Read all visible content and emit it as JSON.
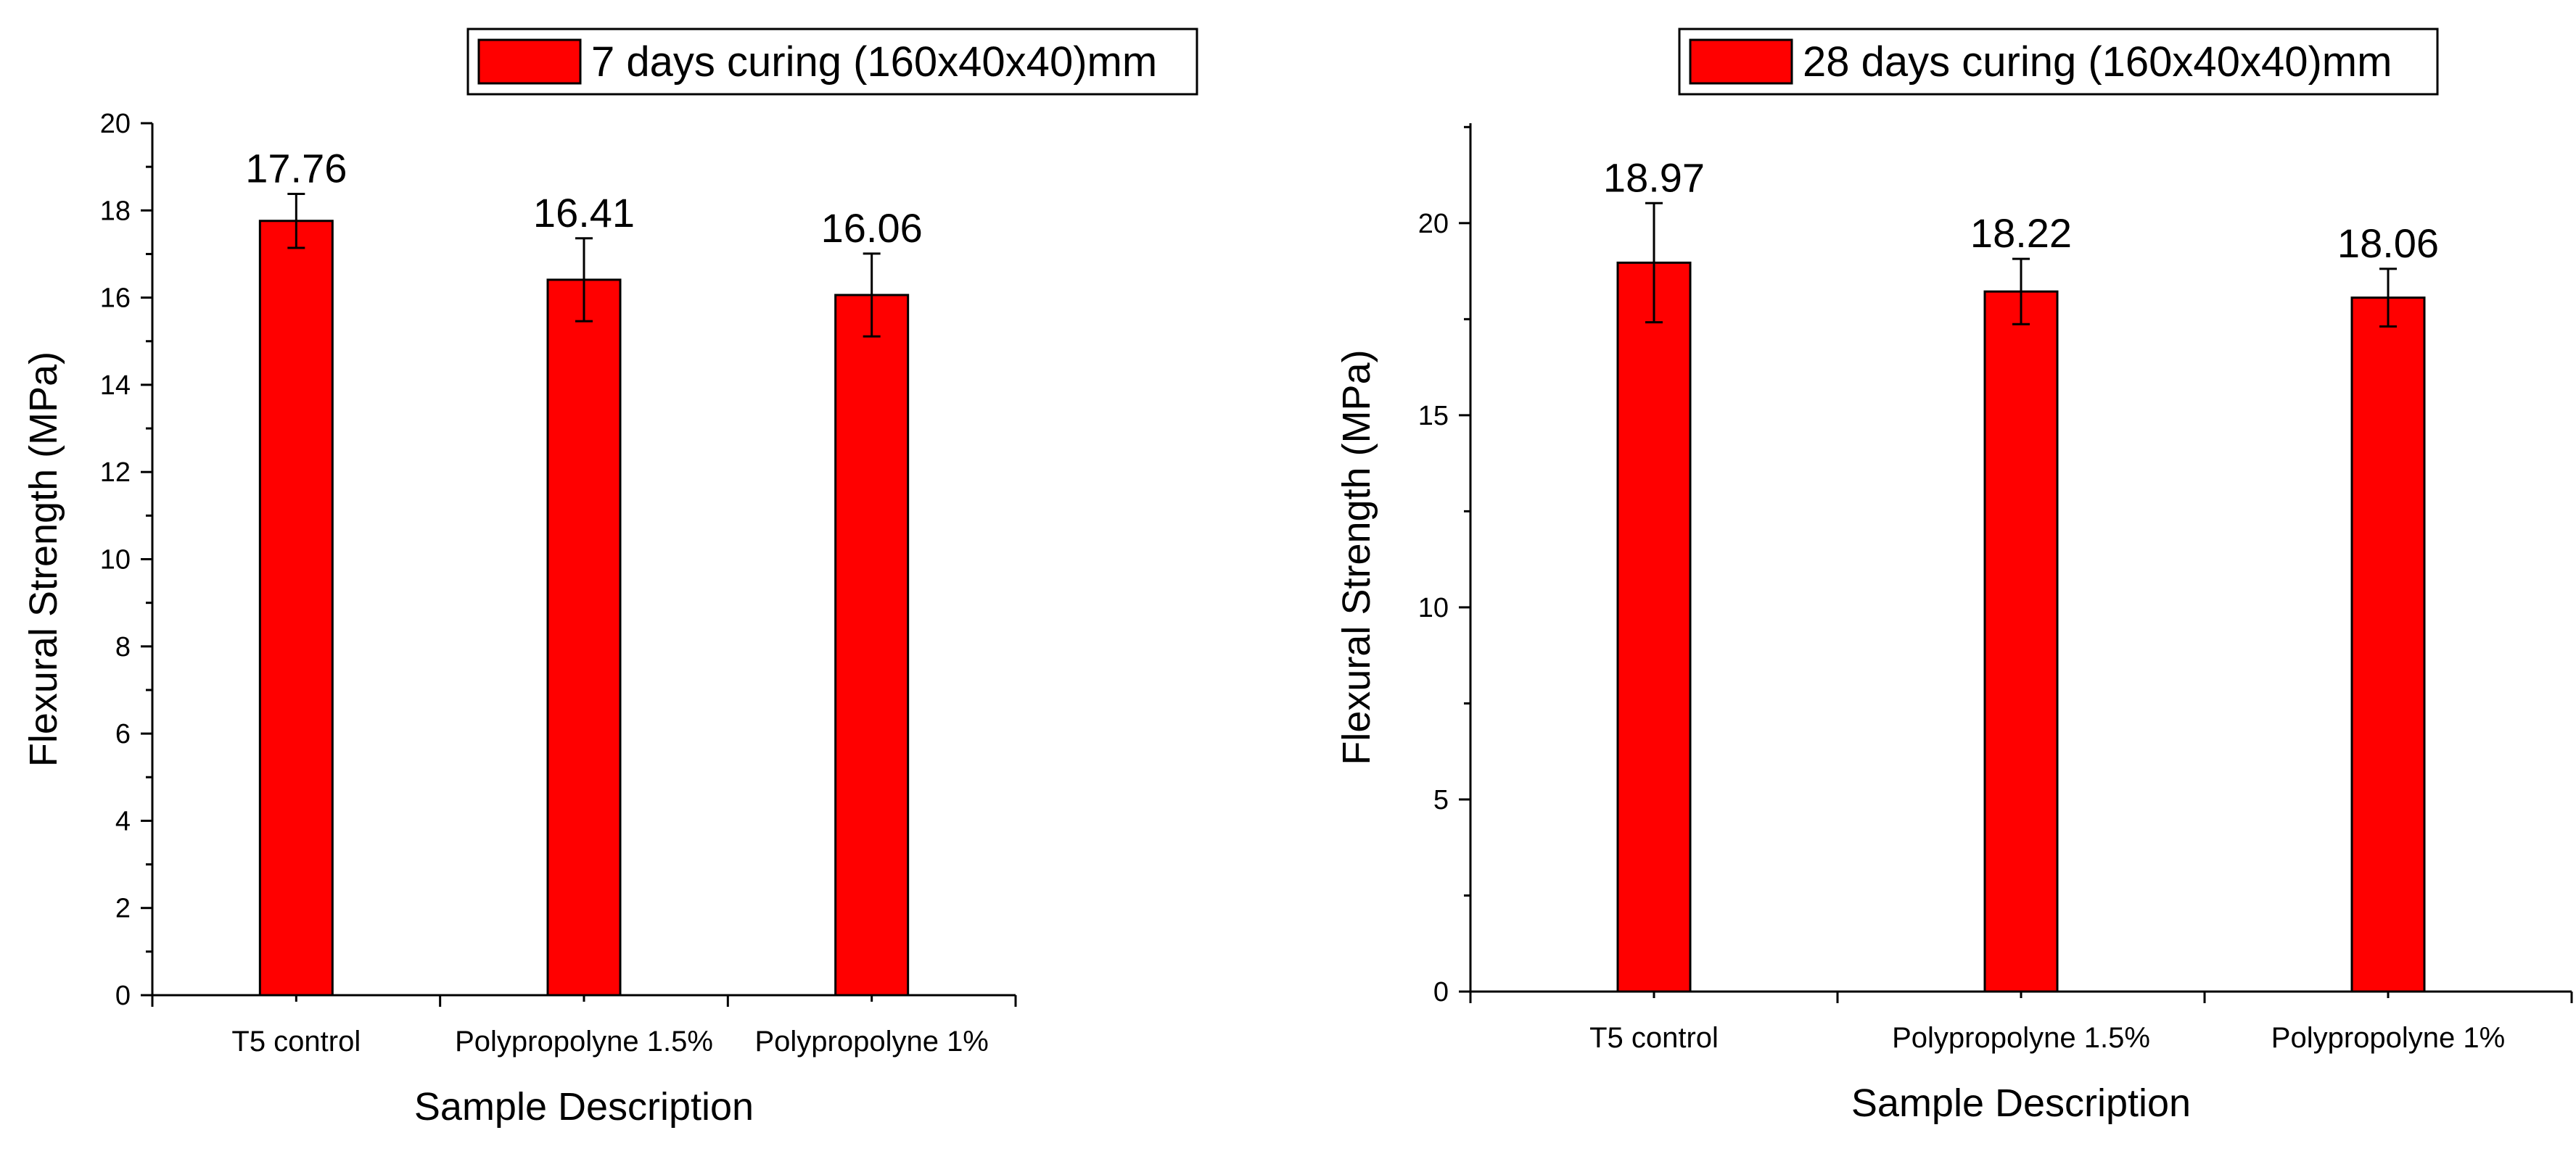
{
  "chart_data": [
    {
      "type": "bar",
      "categories": [
        "T5 control",
        "Polypropolyne 1.5%",
        "Polypropolyne 1%"
      ],
      "series": [
        {
          "name": "7 days curing (160x40x40)mm",
          "values": [
            17.76,
            16.41,
            16.06
          ],
          "errors": [
            0.62,
            0.95,
            0.95
          ],
          "labels": [
            "17.76",
            "16.41",
            "16.06"
          ]
        }
      ],
      "xlabel": "Sample Description",
      "ylabel": "Flexural Strength (MPa)",
      "ylim": [
        0,
        20
      ],
      "yticks": [
        0,
        2,
        4,
        6,
        8,
        10,
        12,
        14,
        16,
        18,
        20
      ],
      "legend": "top-right",
      "bar_color": "#ff0000",
      "grid": false
    },
    {
      "type": "bar",
      "categories": [
        "T5 control",
        "Polypropolyne 1.5%",
        "Polypropolyne 1%"
      ],
      "series": [
        {
          "name": "28 days curing (160x40x40)mm",
          "values": [
            18.97,
            18.22,
            18.06
          ],
          "errors": [
            1.55,
            0.85,
            0.75
          ],
          "labels": [
            "18.97",
            "18.22",
            "18.06"
          ]
        }
      ],
      "xlabel": "Sample Description",
      "ylabel": "Flexural Strength (MPa)",
      "ylim": [
        0,
        22.6
      ],
      "yticks": [
        0,
        5,
        10,
        15,
        20
      ],
      "legend": "top-right",
      "bar_color": "#ff0000",
      "grid": false
    }
  ]
}
